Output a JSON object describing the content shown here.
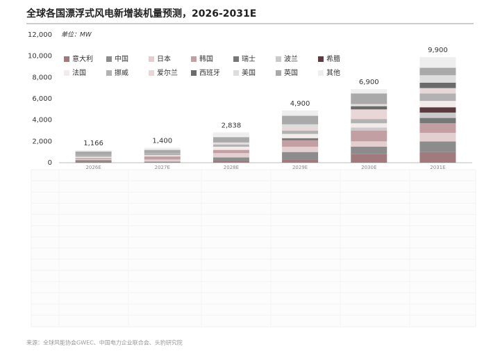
{
  "chart_data": {
    "type": "stacked_bar",
    "title": "全球各国漂浮式风电新增装机量预测，2026-2031E",
    "unit_label": "单位：MW",
    "source": "来源：全球风能协会GWEC、中国电力企业联合会、头豹研究院",
    "categories": [
      "2026E",
      "2027E",
      "2028E",
      "2029E",
      "2030E",
      "2031E"
    ],
    "series": [
      {
        "name": "意大利",
        "color": "#a07a7c",
        "values": [
          100,
          0,
          200,
          300,
          800,
          1000
        ]
      },
      {
        "name": "中国",
        "color": "#8c8c8c",
        "values": [
          150,
          100,
          300,
          700,
          700,
          1000
        ]
      },
      {
        "name": "日本",
        "color": "#e3cfd0",
        "values": [
          100,
          200,
          400,
          500,
          500,
          800
        ]
      },
      {
        "name": "韩国",
        "color": "#c29fa3",
        "values": [
          100,
          300,
          300,
          600,
          1000,
          900
        ]
      },
      {
        "name": "瑞士",
        "color": "#777777",
        "values": [
          0,
          0,
          0,
          200,
          0,
          500
        ]
      },
      {
        "name": "波兰",
        "color": "#cacaca",
        "values": [
          0,
          0,
          0,
          0,
          300,
          500
        ]
      },
      {
        "name": "希腊",
        "color": "#5b3b3e",
        "values": [
          0,
          0,
          0,
          0,
          0,
          500
        ]
      },
      {
        "name": "法国",
        "color": "#f3eaea",
        "values": [
          100,
          100,
          300,
          400,
          400,
          600
        ]
      },
      {
        "name": "挪威",
        "color": "#b2b2b2",
        "values": [
          200,
          200,
          200,
          300,
          400,
          700
        ]
      },
      {
        "name": "爱尔兰",
        "color": "#e9d6d7",
        "values": [
          0,
          0,
          100,
          300,
          900,
          500
        ]
      },
      {
        "name": "西班牙",
        "color": "#6b6b6b",
        "values": [
          0,
          0,
          0,
          0,
          300,
          500
        ]
      },
      {
        "name": "美国",
        "color": "#dddddd",
        "values": [
          0,
          0,
          100,
          300,
          200,
          700
        ]
      },
      {
        "name": "英国",
        "color": "#a9a9a9",
        "values": [
          300,
          300,
          500,
          800,
          1000,
          700
        ]
      },
      {
        "name": "其他",
        "color": "#eeeeee",
        "values": [
          116,
          200,
          438,
          500,
          400,
          1000
        ]
      }
    ],
    "totals": [
      1166,
      1400,
      2838,
      4900,
      6900,
      9900
    ],
    "totals_labels": [
      "1,166",
      "1,400",
      "2,838",
      "4,900",
      "6,900",
      "9,900"
    ],
    "ylim": [
      0,
      12000
    ],
    "yticks": [
      0,
      {
        "value": 2000,
        "label": "2,000"
      },
      {
        "value": 4000,
        "label": "4,000"
      },
      {
        "value": 6000,
        "label": "6,000"
      },
      {
        "value": 8000,
        "label": "8,000"
      },
      {
        "value": 10000,
        "label": "10,000"
      },
      {
        "value": 12000,
        "label": "12,000"
      }
    ]
  }
}
